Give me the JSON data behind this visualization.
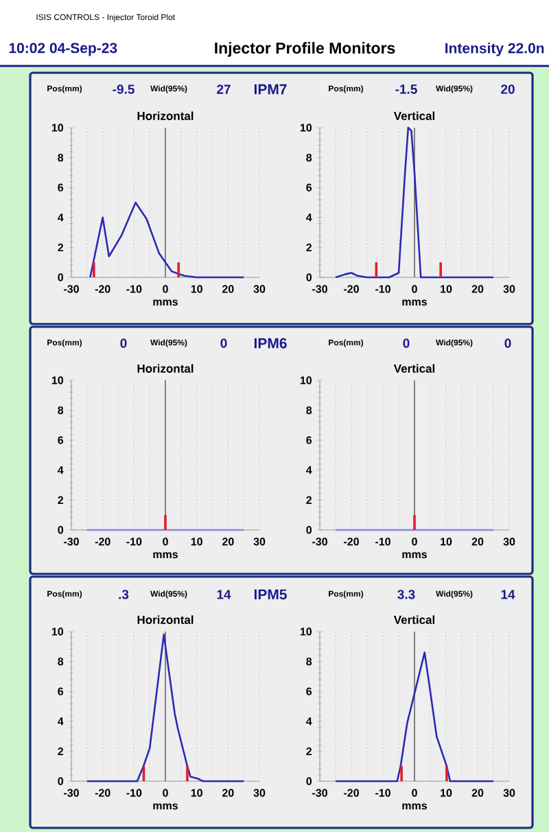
{
  "chart_data": [
    {
      "type": "line",
      "title": "Horizontal",
      "xlabel": "mms",
      "xlim": [
        -30,
        30
      ],
      "xticks": [
        -30,
        -20,
        -10,
        0,
        10,
        20,
        30
      ],
      "ylim": [
        0,
        10
      ],
      "yticks": [
        0,
        2,
        4,
        6,
        8,
        10
      ],
      "grid": "x",
      "annotations": [
        "ISIS CONTROLS - Injector Toroid Plot",
        "10:02 04-Sep-23",
        "Injector Profile Monitors",
        "Intensity 22.0n",
        "Pos(mm)",
        "-9.5",
        "Wid(95%)",
        "27",
        "IPM7"
      ],
      "ref_lines": [
        {
          "axis": "x",
          "value": 0,
          "color": "#666666"
        }
      ],
      "series": [
        {
          "color": "#2a2ab4",
          "x": [
            -24,
            -23,
            -20,
            -18,
            -14,
            -9.5,
            -6,
            -2,
            2,
            6,
            10,
            25
          ],
          "values": [
            0,
            1,
            4,
            1.4,
            2.8,
            5,
            3.9,
            1.6,
            0.4,
            0.1,
            0,
            0
          ]
        },
        {
          "type": "bar",
          "color": "#e0202a",
          "x": [
            -22.8,
            4.2
          ],
          "values": [
            1,
            1
          ]
        }
      ]
    },
    {
      "type": "line",
      "title": "Vertical",
      "xlabel": "mms",
      "xlim": [
        -30,
        30
      ],
      "xticks": [
        -30,
        -20,
        -10,
        0,
        10,
        20,
        30
      ],
      "ylim": [
        0,
        10
      ],
      "yticks": [
        0,
        2,
        4,
        6,
        8,
        10
      ],
      "grid": "x",
      "annotations": [
        "Pos(mm)",
        "-1.5",
        "Wid(95%)",
        "20"
      ],
      "ref_lines": [
        {
          "axis": "x",
          "value": 0,
          "color": "#666666"
        }
      ],
      "series": [
        {
          "color": "#2a2ab4",
          "x": [
            -25,
            -22,
            -20,
            -18,
            -15,
            -8,
            -5,
            -3,
            -2,
            -1,
            0,
            2,
            25
          ],
          "values": [
            0,
            0.2,
            0.3,
            0.1,
            0,
            0,
            0.3,
            7,
            10,
            9.8,
            7,
            0,
            0
          ]
        },
        {
          "type": "bar",
          "color": "#e0202a",
          "x": [
            -12.1,
            8.3
          ],
          "values": [
            1,
            1
          ]
        }
      ]
    },
    {
      "type": "line",
      "title": "Horizontal",
      "xlabel": "mms",
      "xlim": [
        -30,
        30
      ],
      "xticks": [
        -30,
        -20,
        -10,
        0,
        10,
        20,
        30
      ],
      "ylim": [
        0,
        10
      ],
      "yticks": [
        0,
        2,
        4,
        6,
        8,
        10
      ],
      "grid": "x",
      "annotations": [
        "Pos(mm)",
        "0",
        "Wid(95%)",
        "0",
        "IPM6"
      ],
      "ref_lines": [
        {
          "axis": "x",
          "value": 0,
          "color": "#666666"
        }
      ],
      "series": [
        {
          "color": "#8888d8",
          "x": [
            -25,
            25
          ],
          "values": [
            0,
            0
          ]
        },
        {
          "type": "bar",
          "color": "#e0202a",
          "x": [
            0
          ],
          "values": [
            1
          ]
        }
      ]
    },
    {
      "type": "line",
      "title": "Vertical",
      "xlabel": "mms",
      "xlim": [
        -30,
        30
      ],
      "xticks": [
        -30,
        -20,
        -10,
        0,
        10,
        20,
        30
      ],
      "ylim": [
        0,
        10
      ],
      "yticks": [
        0,
        2,
        4,
        6,
        8,
        10
      ],
      "grid": "x",
      "annotations": [
        "Pos(mm)",
        "0",
        "Wid(95%)",
        "0"
      ],
      "ref_lines": [
        {
          "axis": "x",
          "value": 0,
          "color": "#666666"
        }
      ],
      "series": [
        {
          "color": "#8888d8",
          "x": [
            -25,
            25
          ],
          "values": [
            0,
            0
          ]
        },
        {
          "type": "bar",
          "color": "#e0202a",
          "x": [
            0
          ],
          "values": [
            1
          ]
        }
      ]
    },
    {
      "type": "line",
      "title": "Horizontal",
      "xlabel": "mms",
      "xlim": [
        -30,
        30
      ],
      "xticks": [
        -30,
        -20,
        -10,
        0,
        10,
        20,
        30
      ],
      "ylim": [
        0,
        10
      ],
      "yticks": [
        0,
        2,
        4,
        6,
        8,
        10
      ],
      "grid": "x",
      "annotations": [
        "Pos(mm)",
        ".3",
        "Wid(95%)",
        "14",
        "IPM5"
      ],
      "ref_lines": [
        {
          "axis": "x",
          "value": 0,
          "color": "#666666"
        }
      ],
      "series": [
        {
          "color": "#2a2ab4",
          "x": [
            -25,
            -9,
            -7,
            -5,
            -0.5,
            3,
            4,
            7,
            8,
            10,
            12,
            25
          ],
          "values": [
            0,
            0,
            1,
            2.2,
            9.8,
            4.5,
            3.5,
            1,
            0.3,
            0.2,
            0,
            0
          ]
        },
        {
          "type": "bar",
          "color": "#e0202a",
          "x": [
            -6.9,
            7
          ],
          "values": [
            1,
            1
          ]
        }
      ]
    },
    {
      "type": "line",
      "title": "Vertical",
      "xlabel": "mms",
      "xlim": [
        -30,
        30
      ],
      "xticks": [
        -30,
        -20,
        -10,
        0,
        10,
        20,
        30
      ],
      "ylim": [
        0,
        10
      ],
      "yticks": [
        0,
        2,
        4,
        6,
        8,
        10
      ],
      "grid": "x",
      "annotations": [
        "Pos(mm)",
        "3.3",
        "Wid(95%)",
        "14"
      ],
      "ref_lines": [
        {
          "axis": "x",
          "value": 0,
          "color": "#666666"
        }
      ],
      "series": [
        {
          "color": "#2a2ab4",
          "x": [
            -25,
            -5.5,
            -4.4,
            -2.3,
            3.2,
            5,
            7,
            10.2,
            11.3,
            25
          ],
          "values": [
            0,
            0,
            1,
            3.9,
            8.6,
            6,
            3,
            1,
            0,
            0
          ]
        },
        {
          "type": "bar",
          "color": "#e0202a",
          "x": [
            -4.1,
            10.2
          ],
          "values": [
            1,
            1
          ]
        }
      ]
    }
  ]
}
